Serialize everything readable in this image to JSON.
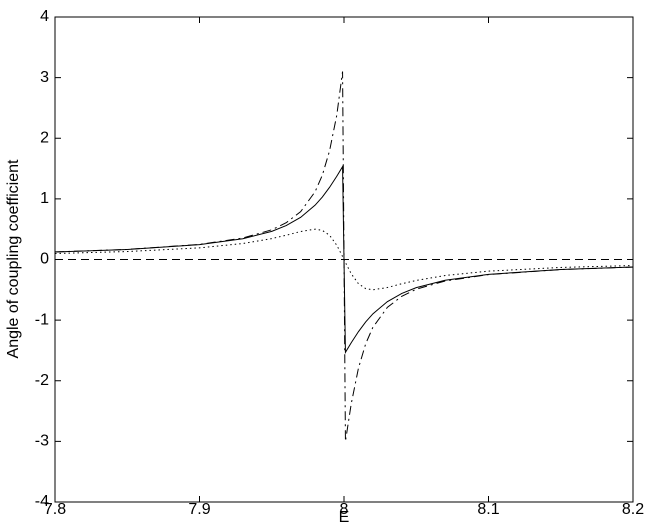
{
  "chart_data": {
    "type": "line",
    "x_label": "E",
    "y_label": "Angle of coupling coefficient",
    "x": [
      7.8,
      7.85,
      7.9,
      7.93,
      7.95,
      7.96,
      7.97,
      7.98,
      7.985,
      7.99,
      7.995,
      7.999,
      8.001,
      8.005,
      8.01,
      8.015,
      8.02,
      8.03,
      8.04,
      8.05,
      8.07,
      8.1,
      8.15,
      8.2
    ],
    "series": [
      {
        "color": "#000000",
        "dash": "none",
        "values": [
          0.124,
          0.165,
          0.245,
          0.343,
          0.464,
          0.559,
          0.695,
          0.896,
          1.03,
          1.19,
          1.373,
          1.531,
          -1.531,
          -1.373,
          -1.19,
          -1.03,
          -0.896,
          -0.695,
          -0.559,
          -0.464,
          -0.343,
          -0.245,
          -0.165,
          -0.124
        ]
      },
      {
        "color": "#000000",
        "dash": "9 4 2 4",
        "values": [
          0.125,
          0.166,
          0.249,
          0.354,
          0.49,
          0.606,
          0.79,
          1.118,
          1.39,
          1.792,
          2.38,
          3.1,
          -3.0,
          -2.38,
          -1.792,
          -1.39,
          -1.118,
          -0.79,
          -0.606,
          -0.49,
          -0.354,
          -0.249,
          -0.166,
          -0.125
        ]
      },
      {
        "color": "#000000",
        "dash": "1.5 3",
        "values": [
          0.099,
          0.131,
          0.192,
          0.264,
          0.345,
          0.4,
          0.462,
          0.5,
          0.48,
          0.4,
          0.235,
          0.05,
          -0.05,
          -0.235,
          -0.4,
          -0.48,
          -0.5,
          -0.462,
          -0.4,
          -0.345,
          -0.264,
          -0.192,
          -0.131,
          -0.099
        ]
      },
      {
        "color": "#000000",
        "dash": "8 5",
        "values": [
          0,
          0,
          0,
          0,
          0,
          0,
          0,
          0,
          0,
          0,
          0,
          0,
          0,
          0,
          0,
          0,
          0,
          0,
          0,
          0,
          0,
          0,
          0,
          0
        ]
      }
    ],
    "xlim": [
      7.8,
      8.2
    ],
    "ylim": [
      -4,
      4
    ],
    "xticks": [
      7.8,
      7.9,
      8,
      8.1,
      8.2
    ],
    "yticks": [
      -4,
      -3,
      -2,
      -1,
      0,
      1,
      2,
      3,
      4
    ],
    "grid": false
  }
}
